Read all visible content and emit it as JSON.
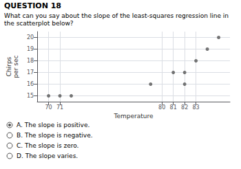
{
  "chart_data": {
    "type": "scatter",
    "title": "QUESTION 18",
    "subtitle": "What can you say about the slope of the least-squares regression line in the scatterplot below?",
    "xlabel": "Temperature",
    "ylabel": "Chirps\nper sec",
    "x": [
      70,
      71,
      72,
      79,
      81,
      82,
      82,
      83,
      84,
      85
    ],
    "values": [
      15,
      15,
      15,
      16,
      17,
      17,
      16,
      18,
      19,
      20
    ],
    "color": "#555555",
    "xlim": [
      69,
      86
    ],
    "ylim": [
      14.5,
      20.5
    ],
    "xticks": [
      70,
      71,
      80,
      81,
      82,
      83
    ],
    "yticks": [
      15,
      16,
      17,
      18,
      19,
      20
    ],
    "grid": true,
    "annotations": [
      {
        "text": "A. The slope is positive.",
        "selected": true
      },
      {
        "text": "B. The slope is negative.",
        "selected": false
      },
      {
        "text": "C. The slope is zero.",
        "selected": false
      },
      {
        "text": "D. The slope varies.",
        "selected": false
      }
    ]
  }
}
